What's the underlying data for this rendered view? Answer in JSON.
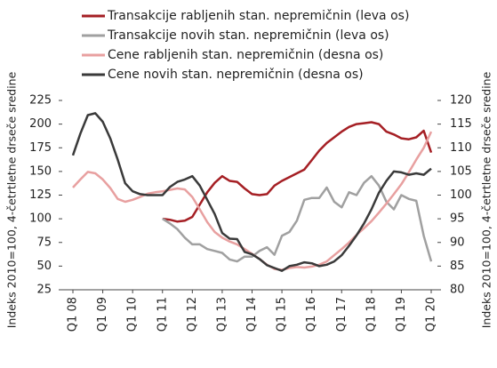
{
  "chart_data": {
    "type": "line",
    "y_label": "Indeks 2010=100, 4-četrtletne drseče sredine",
    "y2_label": "Indeks 2010=100, 4-četrtletne drseče sredine",
    "categories": [
      "Q1 08",
      null,
      null,
      null,
      "Q1 09",
      null,
      null,
      null,
      "Q1 10",
      null,
      null,
      null,
      "Q1 11",
      null,
      null,
      null,
      "Q1 12",
      null,
      null,
      null,
      "Q1 13",
      null,
      null,
      null,
      "Q1 14",
      null,
      null,
      null,
      "Q1 15",
      null,
      null,
      null,
      "Q1 16",
      null,
      null,
      null,
      "Q1 17",
      null,
      null,
      null,
      "Q1 18",
      null,
      null,
      null,
      "Q1 19",
      null,
      null,
      null,
      "Q1 20"
    ],
    "ylim": [
      25,
      225
    ],
    "yticks": [
      25,
      50,
      75,
      100,
      125,
      150,
      175,
      200,
      225
    ],
    "y2lim": [
      80,
      120
    ],
    "y2ticks": [
      80,
      85,
      90,
      95,
      100,
      105,
      110,
      115,
      120
    ],
    "series": [
      {
        "name": "Transakcije rabljenih stan. nepremičnin (leva os)",
        "color": "#a51f24",
        "axis": "y",
        "values": [
          null,
          null,
          null,
          null,
          null,
          null,
          null,
          null,
          null,
          null,
          null,
          null,
          100,
          99,
          97,
          98,
          102,
          115,
          128,
          138,
          145,
          140,
          139,
          132,
          126,
          125,
          126,
          135,
          140,
          144,
          148,
          152,
          162,
          172,
          180,
          186,
          192,
          197,
          200,
          201,
          202,
          200,
          192,
          189,
          185,
          184,
          186,
          193,
          170
        ]
      },
      {
        "name": "Transakcije novih stan. nepremičnin (leva os)",
        "color": "#a0a0a0",
        "axis": "y",
        "values": [
          null,
          null,
          null,
          null,
          null,
          null,
          null,
          null,
          null,
          null,
          null,
          null,
          100,
          95,
          89,
          80,
          73,
          73,
          68,
          66,
          64,
          57,
          55,
          60,
          60,
          66,
          70,
          62,
          82,
          86,
          98,
          120,
          122,
          122,
          133,
          118,
          112,
          128,
          125,
          138,
          145,
          135,
          118,
          110,
          125,
          121,
          119,
          82,
          55
        ]
      },
      {
        "name": "Cene rabljenih stan. nepremičnin (desna os)",
        "color": "#e8a0a0",
        "axis": "y2",
        "values": [
          101.6,
          103.3,
          104.9,
          104.6,
          103.3,
          101.5,
          99.2,
          98.6,
          99,
          99.6,
          100.3,
          100.6,
          100.8,
          101.1,
          101.4,
          101.2,
          99.6,
          97,
          94.3,
          92.2,
          91,
          90.2,
          89.6,
          88.6,
          87.6,
          86.5,
          85.3,
          84.4,
          84.2,
          84.6,
          84.8,
          84.7,
          84.9,
          85.3,
          86,
          87.3,
          88.6,
          90,
          91.6,
          93,
          94.5,
          96.3,
          98.2,
          100.2,
          102.3,
          104.8,
          107.5,
          110,
          113.4
        ]
      },
      {
        "name": "Cene novih stan. nepremičnin (desna os)",
        "color": "#3a3a3a",
        "axis": "y2",
        "values": [
          108.4,
          113,
          116.9,
          117.3,
          115.5,
          112,
          107.5,
          102.5,
          100.8,
          100.2,
          100,
          100,
          100,
          101.7,
          102.8,
          103.3,
          104,
          102,
          99,
          96,
          92,
          90.8,
          90.7,
          88,
          87.5,
          86.5,
          85.2,
          84.6,
          84,
          85,
          85.3,
          85.8,
          85.6,
          85,
          85.3,
          86,
          87.3,
          89.3,
          91.5,
          94,
          97,
          100.5,
          103,
          105,
          104.8,
          104.3,
          104.6,
          104.3,
          105.6
        ]
      }
    ]
  }
}
